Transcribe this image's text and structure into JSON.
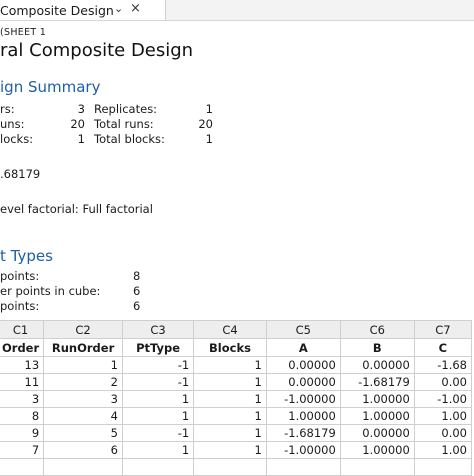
{
  "tab": {
    "title": "Composite Design",
    "chevron_icon": "chevron-down-icon",
    "close_icon": "close-icon"
  },
  "worksheet_label": "(SHEET 1",
  "page_title": "ral Composite Design",
  "design_summary": {
    "heading": "ign Summary",
    "rows": [
      {
        "label1": "rs:",
        "value1": "3",
        "label2": "Replicates:",
        "value2": "1"
      },
      {
        "label1": "uns:",
        "value1": "20",
        "label2": "Total runs:",
        "value2": "20"
      },
      {
        "label1": "locks:",
        "value1": "1",
        "label2": "Total blocks:",
        "value2": "1"
      }
    ],
    "alpha_value": ".68179",
    "level_factorial": "evel factorial: Full factorial"
  },
  "point_types": {
    "heading": "t Types",
    "rows": [
      {
        "label": "points:",
        "value": "8"
      },
      {
        "label": "er points in cube:",
        "value": "6"
      },
      {
        "label": "points:",
        "value": "6"
      }
    ]
  },
  "worksheet": {
    "column_ids": [
      "C1",
      "C2",
      "C3",
      "C4",
      "C5",
      "C6",
      "C7"
    ],
    "column_names": [
      "Order",
      "RunOrder",
      "PtType",
      "Blocks",
      "A",
      "B",
      "C"
    ],
    "rows": [
      [
        "13",
        "1",
        "-1",
        "1",
        "0.00000",
        "0.00000",
        "-1.68"
      ],
      [
        "11",
        "2",
        "-1",
        "1",
        "0.00000",
        "-1.68179",
        "0.00"
      ],
      [
        "3",
        "3",
        "1",
        "1",
        "-1.00000",
        "1.00000",
        "-1.00"
      ],
      [
        "8",
        "4",
        "1",
        "1",
        "1.00000",
        "1.00000",
        "1.00"
      ],
      [
        "9",
        "5",
        "-1",
        "1",
        "-1.68179",
        "0.00000",
        "0.00"
      ],
      [
        "7",
        "6",
        "1",
        "1",
        "-1.00000",
        "1.00000",
        "1.00"
      ],
      [
        "",
        "",
        "",
        "",
        "",
        "",
        ""
      ]
    ]
  }
}
